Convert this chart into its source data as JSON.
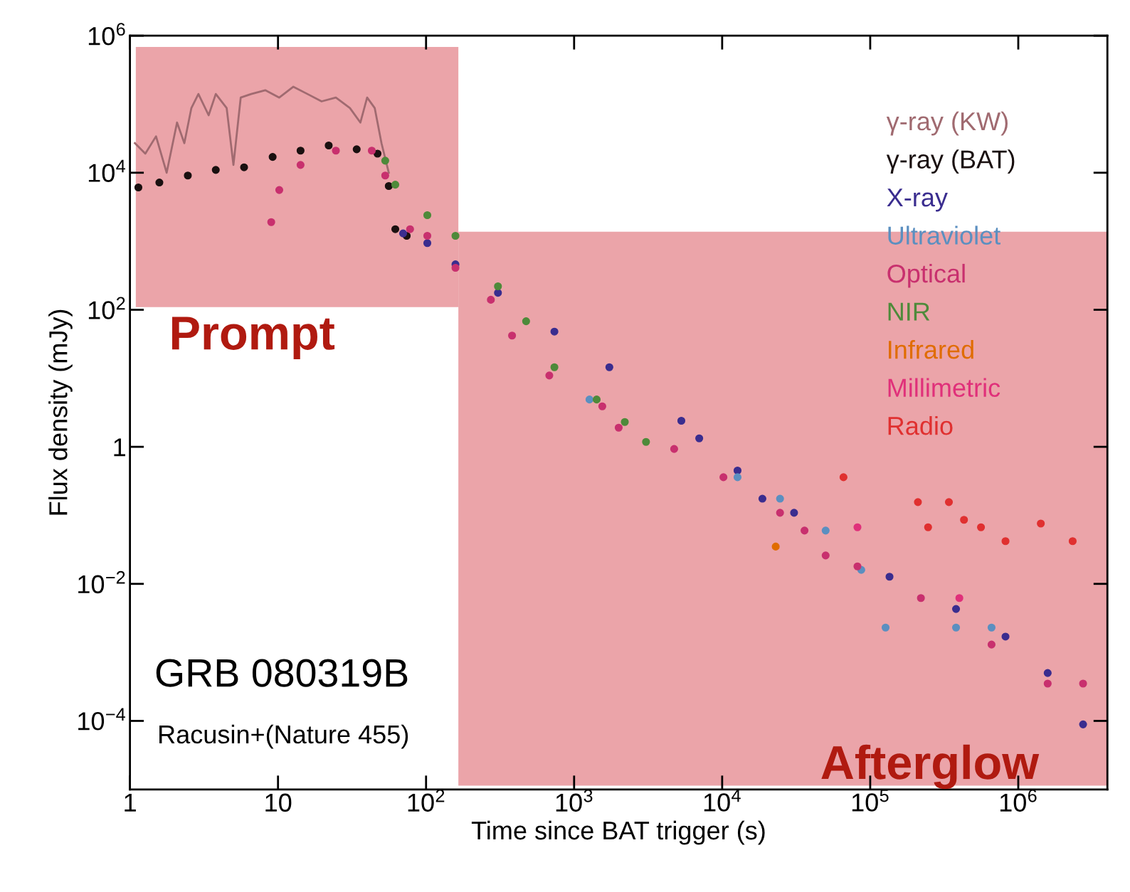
{
  "chart_data": {
    "type": "scatter",
    "xlabel": "Time since BAT trigger (s)",
    "ylabel": "Flux density (mJy)",
    "log": "xy",
    "xlim": [
      1,
      4000000
    ],
    "ylim": [
      1e-05,
      1000000
    ],
    "xticks": [
      1,
      10,
      {
        "value": 100,
        "label": "10$^{2}$"
      },
      {
        "value": 1000,
        "label": "10$^{3}$"
      },
      {
        "value": 10000,
        "label": "10$^{4}$"
      },
      {
        "value": 100000,
        "label": "10$^{5}$"
      },
      {
        "value": 1000000,
        "label": "10$^{6}$"
      }
    ],
    "yticks": [
      {
        "value": 0.0001,
        "label": "10$^{−4}$"
      },
      {
        "value": 0.01,
        "label": "10$^{−2}$"
      },
      1,
      {
        "value": 100,
        "label": "10$^{2}$"
      },
      {
        "value": 10000,
        "label": "10$^{4}$"
      },
      {
        "value": 1000000,
        "label": "10$^{6}$"
      }
    ],
    "grid": false,
    "legend": "top right",
    "marker": "circle",
    "annotations": [
      "Prompt",
      "Afterglow",
      "GRB 080319B",
      "Racusin+(Nature 455)"
    ],
    "series": [
      {
        "name": "γ-ray (KW)",
        "type": "line",
        "marker": "none",
        "color": "#a06a70",
        "x": [
          1.08,
          1.27,
          1.5,
          1.77,
          2.08,
          2.33,
          2.6,
          2.9,
          3.4,
          3.8,
          4.5,
          5.0,
          5.6,
          6.6,
          8.2,
          10.2,
          12.7,
          15.8,
          19.7,
          24.6,
          30.6,
          36,
          40,
          45,
          50,
          56
        ],
        "values": [
          27000,
          19000,
          34000,
          10000,
          54000,
          27000,
          88000,
          141000,
          69000,
          141000,
          88000,
          13000,
          125000,
          141000,
          160000,
          125000,
          180000,
          141000,
          110000,
          125000,
          88000,
          54000,
          125000,
          88000,
          27000,
          10000
        ]
      },
      {
        "name": "γ-ray (BAT)",
        "color": "#1a1010",
        "x": [
          1.14,
          1.58,
          2.46,
          3.8,
          5.9,
          9.2,
          14.2,
          22,
          34,
          47,
          56,
          62,
          74
        ],
        "values": [
          6100,
          7200,
          9100,
          11000,
          12000,
          17000,
          21000,
          25000,
          22000,
          19000,
          6400,
          1500,
          1200
        ]
      },
      {
        "name": "X-ray",
        "color": "#3a2d8f",
        "x": [
          70,
          102,
          158,
          306,
          736,
          1730,
          5300,
          7000,
          12700,
          18700,
          30600,
          135000,
          380000,
          820000,
          1580000,
          2740000
        ],
        "values": [
          1300,
          940,
          460,
          177,
          48,
          14.5,
          2.4,
          1.33,
          0.45,
          0.175,
          0.109,
          0.0127,
          0.0043,
          0.0017,
          0.0005,
          8.9e-05
        ]
      },
      {
        "name": "Ultraviolet",
        "color": "#5b8fc0",
        "x": [
          1270,
          12700,
          24600,
          50000,
          87000,
          127000,
          380000,
          660000
        ],
        "values": [
          4.9,
          0.36,
          0.175,
          0.06,
          0.016,
          0.0023,
          0.0023,
          0.0023
        ]
      },
      {
        "name": "Optical",
        "color": "#c8306e",
        "x": [
          9.0,
          10.2,
          14.2,
          24.6,
          43,
          53,
          78,
          102,
          158,
          274,
          381,
          680,
          1550,
          2000,
          4740,
          10200,
          24600,
          36000,
          50000,
          82000,
          220000,
          660000,
          1580000,
          2740000
        ],
        "values": [
          1900,
          5600,
          13000,
          21000,
          21000,
          9100,
          1500,
          1200,
          410,
          140,
          42,
          11,
          3.9,
          1.9,
          0.93,
          0.36,
          0.109,
          0.06,
          0.026,
          0.018,
          0.0062,
          0.0013,
          0.00035,
          0.00035
        ]
      },
      {
        "name": "NIR",
        "color": "#4e8a3a",
        "x": [
          53,
          62,
          102,
          158,
          306,
          474,
          736,
          1420,
          2200,
          3060
        ],
        "values": [
          15000,
          6700,
          2400,
          1200,
          220,
          68,
          14.5,
          4.9,
          2.3,
          1.18
        ]
      },
      {
        "name": "Infrared",
        "color": "#e06c00",
        "x": [
          23000
        ],
        "values": [
          0.035
        ]
      },
      {
        "name": "Millimetric",
        "color": "#e0307a",
        "x": [
          82000,
          400000
        ],
        "values": [
          0.067,
          0.0062
        ]
      },
      {
        "name": "Radio",
        "color": "#e03030",
        "x": [
          66000,
          210000,
          246000,
          340000,
          430000,
          560000,
          820000,
          1420000,
          2330000
        ],
        "values": [
          0.36,
          0.156,
          0.067,
          0.156,
          0.086,
          0.067,
          0.042,
          0.076,
          0.042
        ]
      }
    ]
  }
}
